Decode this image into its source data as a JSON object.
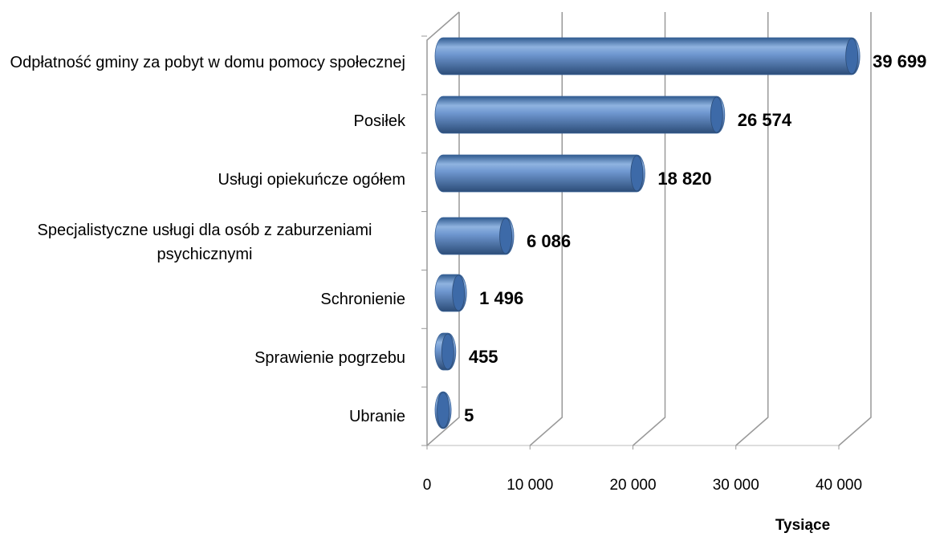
{
  "chart_data": {
    "type": "bar",
    "orientation": "horizontal",
    "categories": [
      "Odpłatność gminy za pobyt w domu pomocy społecznej",
      "Posiłek",
      "Usługi opiekuńcze ogółem",
      "Specjalistyczne usługi dla osób z zaburzeniami psychicznymi",
      "Schronienie",
      "Sprawienie pogrzebu",
      "Ubranie"
    ],
    "values": [
      39699,
      26574,
      18820,
      6086,
      1496,
      455,
      5
    ],
    "value_labels": [
      "39 699",
      "26 574",
      "18 820",
      "6 086",
      "1 496",
      "455",
      "5"
    ],
    "color": "#4f81bd",
    "xlim": [
      0,
      40000
    ],
    "xticks": [
      0,
      {
        "value": 10000,
        "label": "10 000"
      },
      {
        "value": 20000,
        "label": "20 000"
      },
      {
        "value": 30000,
        "label": "30 000"
      },
      {
        "value": 40000,
        "label": "40 000"
      }
    ],
    "x_label": "Tysiące",
    "grid": true
  }
}
